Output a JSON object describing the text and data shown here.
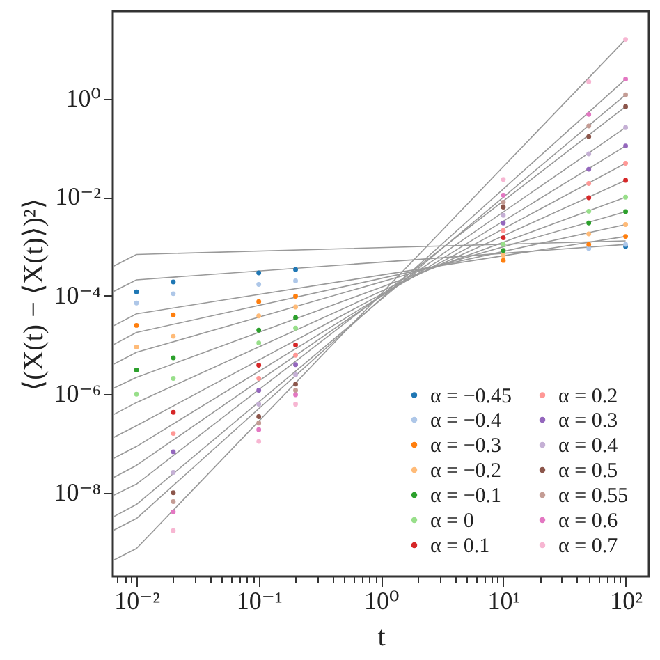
{
  "chart_data": {
    "type": "scatter",
    "xlabel": "t",
    "ylabel": "⟨(X(t) − ⟨X(t)⟩)²⟩",
    "log": "xy",
    "marker": "circle",
    "legend": "bottom right",
    "xlim": [
      0.0064,
      155
    ],
    "ylim": [
      2e-10,
      60
    ],
    "xticks": [
      {
        "value": 0.007,
        "label": null
      },
      {
        "value": 0.008,
        "label": null
      },
      {
        "value": 0.009,
        "label": null
      },
      {
        "value": 0.01,
        "label": "10⁻²"
      },
      {
        "value": 0.02,
        "label": null
      },
      {
        "value": 0.03,
        "label": null
      },
      {
        "value": 0.04,
        "label": null
      },
      {
        "value": 0.05,
        "label": null
      },
      {
        "value": 0.06,
        "label": null
      },
      {
        "value": 0.07,
        "label": null
      },
      {
        "value": 0.08,
        "label": null
      },
      {
        "value": 0.09,
        "label": null
      },
      {
        "value": 0.1,
        "label": "10⁻¹"
      },
      {
        "value": 0.2,
        "label": null
      },
      {
        "value": 0.3,
        "label": null
      },
      {
        "value": 0.4,
        "label": null
      },
      {
        "value": 0.5,
        "label": null
      },
      {
        "value": 0.6,
        "label": null
      },
      {
        "value": 0.7,
        "label": null
      },
      {
        "value": 0.8,
        "label": null
      },
      {
        "value": 0.9,
        "label": null
      },
      {
        "value": 1,
        "label": "10⁰"
      },
      {
        "value": 2,
        "label": null
      },
      {
        "value": 3,
        "label": null
      },
      {
        "value": 4,
        "label": null
      },
      {
        "value": 5,
        "label": null
      },
      {
        "value": 6,
        "label": null
      },
      {
        "value": 7,
        "label": null
      },
      {
        "value": 8,
        "label": null
      },
      {
        "value": 9,
        "label": null
      },
      {
        "value": 10,
        "label": "10¹"
      },
      {
        "value": 20,
        "label": null
      },
      {
        "value": 30,
        "label": null
      },
      {
        "value": 40,
        "label": null
      },
      {
        "value": 50,
        "label": null
      },
      {
        "value": 60,
        "label": null
      },
      {
        "value": 70,
        "label": null
      },
      {
        "value": 80,
        "label": null
      },
      {
        "value": 90,
        "label": null
      },
      {
        "value": 100,
        "label": "10²"
      }
    ],
    "yticks": [
      {
        "value": 1e-08,
        "label": "10⁻⁸"
      },
      {
        "value": 1e-06,
        "label": "10⁻⁶"
      },
      {
        "value": 0.0001,
        "label": "10⁻⁴"
      },
      {
        "value": 0.01,
        "label": "10⁻²"
      },
      {
        "value": 1,
        "label": "10⁰"
      }
    ],
    "x": [
      0.01,
      0.02,
      0.1,
      0.2,
      10,
      50,
      100
    ],
    "series": [
      {
        "type": "line",
        "marker": "none",
        "color": "#999999",
        "x": [
          0.0064,
          0.01,
          100
        ],
        "values": [
          0.00039,
          0.00069,
          0.0013
        ]
      },
      {
        "type": "line",
        "marker": "none",
        "color": "#999999",
        "x": [
          0.0064,
          0.01,
          100
        ],
        "values": [
          0.00012,
          0.00021,
          0.0011
        ]
      },
      {
        "type": "line",
        "marker": "none",
        "color": "#999999",
        "x": [
          0.0064,
          0.01,
          100
        ],
        "values": [
          2.4e-05,
          4.3e-05,
          0.0016
        ]
      },
      {
        "type": "line",
        "marker": "none",
        "color": "#999999",
        "x": [
          0.0064,
          0.01,
          100
        ],
        "values": [
          1e-05,
          1.8e-05,
          0.0028
        ]
      },
      {
        "type": "line",
        "marker": "none",
        "color": "#999999",
        "x": [
          0.0064,
          0.01,
          100
        ],
        "values": [
          4e-06,
          7.1e-06,
          0.0051
        ]
      },
      {
        "type": "line",
        "marker": "none",
        "color": "#999999",
        "x": [
          0.0064,
          0.01,
          100
        ],
        "values": [
          1.3e-06,
          2.2e-06,
          0.01
        ]
      },
      {
        "type": "line",
        "marker": "none",
        "color": "#999999",
        "x": [
          0.0064,
          0.01,
          100
        ],
        "values": [
          3.8e-07,
          6.8e-07,
          0.022
        ]
      },
      {
        "type": "line",
        "marker": "none",
        "color": "#999999",
        "x": [
          0.0064,
          0.01,
          100
        ],
        "values": [
          1.3e-07,
          2.3e-07,
          0.049
        ]
      },
      {
        "type": "line",
        "marker": "none",
        "color": "#999999",
        "x": [
          0.0064,
          0.01,
          100
        ],
        "values": [
          4.9e-08,
          8.7e-08,
          0.11
        ]
      },
      {
        "type": "line",
        "marker": "none",
        "color": "#999999",
        "x": [
          0.0064,
          0.01,
          100
        ],
        "values": [
          2e-08,
          3.6e-08,
          0.26
        ]
      },
      {
        "type": "line",
        "marker": "none",
        "color": "#999999",
        "x": [
          0.0064,
          0.01,
          100
        ],
        "values": [
          8.7e-09,
          1.5e-08,
          0.69
        ]
      },
      {
        "type": "line",
        "marker": "none",
        "color": "#999999",
        "x": [
          0.0064,
          0.01,
          100
        ],
        "values": [
          3.2e-09,
          5.8e-09,
          1.2
        ]
      },
      {
        "type": "line",
        "marker": "none",
        "color": "#999999",
        "x": [
          0.0064,
          0.01,
          100
        ],
        "values": [
          1.7e-09,
          3e-09,
          2.5
        ]
      },
      {
        "type": "line",
        "marker": "none",
        "color": "#999999",
        "x": [
          0.0064,
          0.01,
          100
        ],
        "values": [
          4.2e-10,
          7.4e-10,
          16
        ]
      },
      {
        "name": "α = −0.45",
        "color": "#1f77b4",
        "values": [
          0.00012,
          0.00019,
          0.00029,
          0.00034,
          null,
          null,
          0.001
        ]
      },
      {
        "name": "α = −0.4",
        "color": "#aec7e8",
        "values": [
          7.1e-05,
          0.00011,
          0.00017,
          0.0002,
          null,
          0.00091,
          0.0011
        ]
      },
      {
        "name": "α = −0.3",
        "color": "#ff7f0e",
        "values": [
          2.5e-05,
          4.1e-05,
          7.6e-05,
          9.8e-05,
          0.00052,
          0.0011,
          0.0016
        ]
      },
      {
        "name": "α = −0.2",
        "color": "#ffbb78",
        "values": [
          9.1e-06,
          1.5e-05,
          3.9e-05,
          5.9e-05,
          0.00066,
          0.0018,
          0.0028
        ]
      },
      {
        "name": "α = −0.1",
        "color": "#2ca02c",
        "values": [
          3.1e-06,
          5.5e-06,
          2e-05,
          3.6e-05,
          0.00083,
          0.003,
          0.0051
        ]
      },
      {
        "name": "α = 0",
        "color": "#98df8a",
        "values": [
          1e-06,
          2.1e-06,
          1.1e-05,
          2.2e-05,
          0.0011,
          0.0052,
          0.01
        ]
      },
      {
        "name": "α = 0.1",
        "color": "#d62728",
        "values": [
          null,
          4.3e-07,
          3.9e-06,
          1e-05,
          0.0015,
          0.0098,
          0.022
        ]
      },
      {
        "name": "α = 0.2",
        "color": "#ff9896",
        "values": [
          null,
          1.6e-07,
          2.1e-06,
          6.2e-06,
          0.0021,
          0.019,
          0.049
        ]
      },
      {
        "name": "α = 0.3",
        "color": "#9467bd",
        "values": [
          null,
          6.8e-08,
          1.2e-06,
          4e-06,
          0.003,
          0.037,
          0.11
        ]
      },
      {
        "name": "α = 0.4",
        "color": "#c5b0d5",
        "values": [
          null,
          2.6e-08,
          6.3e-07,
          2.5e-06,
          0.0043,
          0.076,
          0.26
        ]
      },
      {
        "name": "α = 0.5",
        "color": "#8c564b",
        "values": [
          null,
          1e-08,
          3.5e-07,
          1.6e-06,
          0.0063,
          0.17,
          0.69
        ]
      },
      {
        "name": "α = 0.55",
        "color": "#c49c94",
        "values": [
          null,
          6.6e-09,
          2.6e-07,
          1.2e-06,
          0.0079,
          0.28,
          1.2
        ]
      },
      {
        "name": "α = 0.6",
        "color": "#e377c2",
        "values": [
          null,
          4.1e-09,
          1.9e-07,
          9.8e-07,
          0.011,
          0.48,
          2.5
        ]
      },
      {
        "name": "α = 0.7",
        "color": "#f7b6d2",
        "values": [
          null,
          1.7e-09,
          1.1e-07,
          6.3e-07,
          0.023,
          2.2,
          16
        ]
      }
    ]
  }
}
